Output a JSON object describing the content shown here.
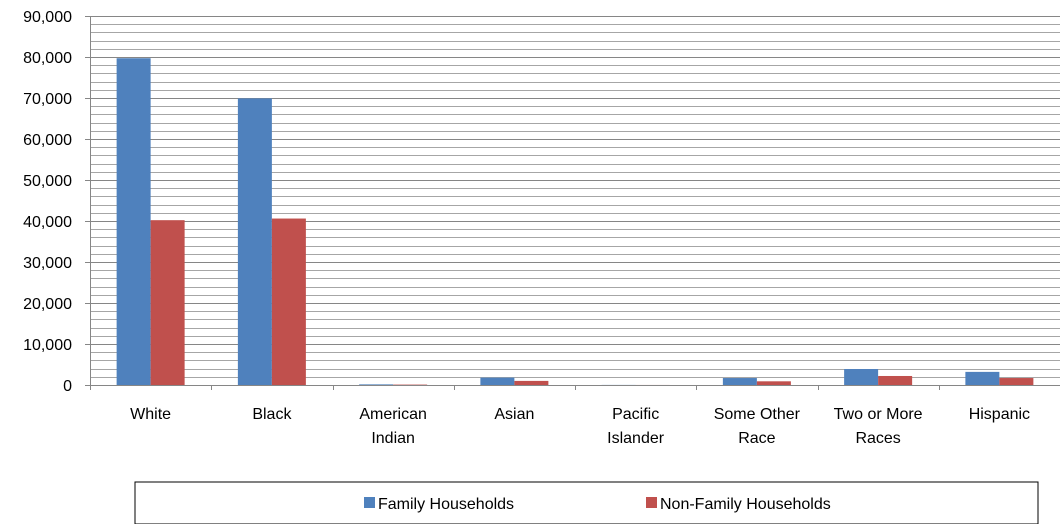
{
  "chart_data": {
    "type": "bar",
    "title": "",
    "xlabel": "",
    "ylabel": "",
    "ylim": [
      0,
      90000
    ],
    "y_ticks": [
      0,
      10000,
      20000,
      30000,
      40000,
      50000,
      60000,
      70000,
      80000,
      90000
    ],
    "y_tick_labels": [
      "0",
      "10,000",
      "20,000",
      "30,000",
      "40,000",
      "50,000",
      "60,000",
      "70,000",
      "80,000",
      "90,000"
    ],
    "grid": true,
    "grid_minor_step": 2000,
    "legend_position": "bottom",
    "categories": [
      [
        "White"
      ],
      [
        "Black"
      ],
      [
        "American",
        "Indian"
      ],
      [
        "Asian"
      ],
      [
        "Pacific",
        "Islander"
      ],
      [
        "Some Other",
        "Race"
      ],
      [
        "Two or More",
        "Races"
      ],
      [
        "Hispanic"
      ]
    ],
    "series": [
      {
        "name": "Family Households",
        "color": "#4f81bd",
        "values": [
          79700,
          69900,
          150,
          1800,
          20,
          1700,
          3900,
          3200
        ]
      },
      {
        "name": "Non-Family Households",
        "color": "#c0504d",
        "values": [
          40200,
          40600,
          100,
          1000,
          10,
          900,
          2200,
          1700
        ]
      }
    ]
  }
}
